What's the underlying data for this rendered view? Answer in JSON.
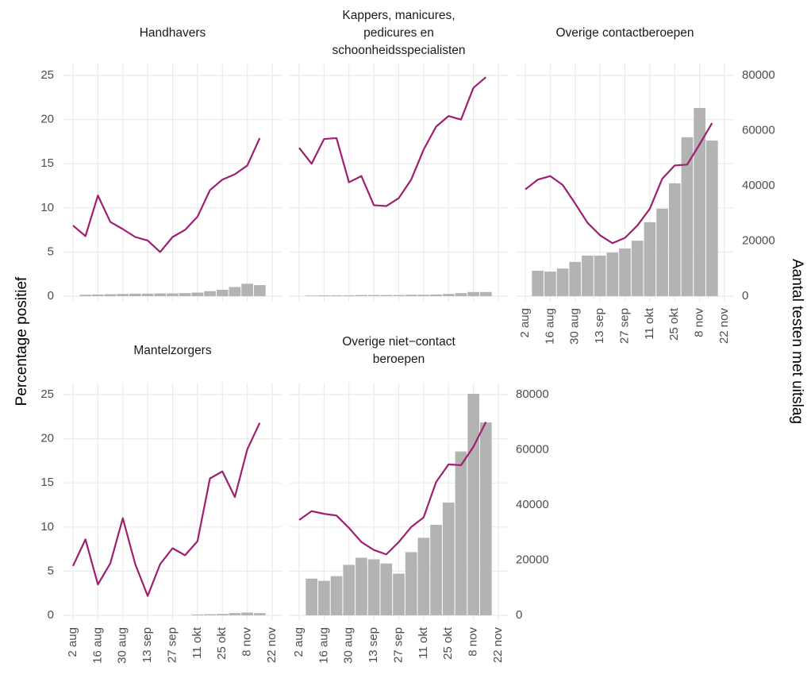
{
  "ylabel": "Percentage positief",
  "y2label": "Aantal testen met uitslag",
  "ylim": [
    0,
    25
  ],
  "yticks": [
    0,
    5,
    10,
    15,
    20,
    25
  ],
  "y2lim": [
    0,
    80000
  ],
  "y2ticks": [
    0,
    20000,
    40000,
    60000,
    80000
  ],
  "xlim": [
    "2 aug",
    "22 nov"
  ],
  "xticks": [
    "2 aug",
    "16 aug",
    "30 aug",
    "13 sep",
    "27 sep",
    "11 okt",
    "25 okt",
    "8 nov",
    "22 nov"
  ],
  "chart_data": [
    {
      "type": "combo",
      "title": [
        "Handhavers"
      ],
      "x": [
        "2 aug",
        "9 aug",
        "16 aug",
        "23 aug",
        "30 aug",
        "6 sep",
        "13 sep",
        "20 sep",
        "27 sep",
        "4 okt",
        "11 okt",
        "18 okt",
        "25 okt",
        "1 nov",
        "8 nov",
        "15 nov"
      ],
      "series": [
        {
          "type": "bar",
          "axis": "y2",
          "color": "#b3b3b3",
          "values": [
            null,
            500,
            600,
            700,
            800,
            900,
            900,
            1000,
            1000,
            1100,
            1300,
            1800,
            2300,
            3300,
            4500,
            4000
          ]
        },
        {
          "type": "line",
          "color": "#9e1f70",
          "values": [
            8.0,
            6.8,
            11.4,
            8.4,
            7.6,
            6.7,
            6.3,
            5.0,
            6.7,
            7.5,
            9.0,
            12.0,
            13.2,
            13.8,
            14.8,
            17.9
          ]
        }
      ]
    },
    {
      "type": "combo",
      "title": [
        "Kappers, manicures,",
        "pedicures en",
        "schoonheidsspecialisten"
      ],
      "x": [
        "2 aug",
        "9 aug",
        "16 aug",
        "23 aug",
        "30 aug",
        "6 sep",
        "13 sep",
        "20 sep",
        "27 sep",
        "4 okt",
        "11 okt",
        "18 okt",
        "25 okt",
        "1 nov",
        "8 nov",
        "15 nov"
      ],
      "series": [
        {
          "type": "bar",
          "axis": "y2",
          "color": "#b3b3b3",
          "values": [
            null,
            200,
            300,
            300,
            300,
            400,
            400,
            400,
            400,
            500,
            500,
            600,
            800,
            1100,
            1500,
            1500
          ]
        },
        {
          "type": "line",
          "color": "#9e1f70",
          "values": [
            16.8,
            15.0,
            17.8,
            17.9,
            12.9,
            13.6,
            10.3,
            10.2,
            11.1,
            13.2,
            16.6,
            19.2,
            20.4,
            20.0,
            23.6,
            24.8
          ]
        }
      ]
    },
    {
      "type": "combo",
      "title": [
        "Overige contactberoepen"
      ],
      "x": [
        "2 aug",
        "9 aug",
        "16 aug",
        "23 aug",
        "30 aug",
        "6 sep",
        "13 sep",
        "20 sep",
        "27 sep",
        "4 okt",
        "11 okt",
        "18 okt",
        "25 okt",
        "1 nov",
        "8 nov",
        "15 nov"
      ],
      "series": [
        {
          "type": "bar",
          "axis": "y2",
          "color": "#b3b3b3",
          "values": [
            null,
            9200,
            8900,
            10000,
            12400,
            14700,
            14700,
            15800,
            17300,
            20100,
            26800,
            31700,
            40900,
            57600,
            68200,
            56400
          ]
        },
        {
          "type": "line",
          "color": "#9e1f70",
          "values": [
            12.1,
            13.2,
            13.6,
            12.6,
            10.5,
            8.3,
            6.9,
            6.0,
            6.6,
            8.0,
            9.9,
            13.3,
            14.8,
            14.9,
            17.2,
            19.6
          ]
        }
      ]
    },
    {
      "type": "combo",
      "title": [
        "Mantelzorgers"
      ],
      "x": [
        "2 aug",
        "9 aug",
        "16 aug",
        "23 aug",
        "30 aug",
        "6 sep",
        "13 sep",
        "20 sep",
        "27 sep",
        "4 okt",
        "11 okt",
        "18 okt",
        "25 okt",
        "1 nov",
        "8 nov",
        "15 nov"
      ],
      "series": [
        {
          "type": "bar",
          "axis": "y2",
          "color": "#b3b3b3",
          "values": [
            null,
            null,
            null,
            null,
            null,
            null,
            null,
            null,
            null,
            null,
            300,
            400,
            500,
            800,
            1000,
            800
          ]
        },
        {
          "type": "line",
          "color": "#9e1f70",
          "values": [
            5.6,
            8.6,
            3.5,
            5.9,
            11.0,
            5.8,
            2.2,
            5.8,
            7.6,
            6.8,
            8.4,
            15.5,
            16.3,
            13.4,
            18.8,
            21.8
          ]
        }
      ]
    },
    {
      "type": "combo",
      "title": [
        "Overige niet−contact",
        "beroepen"
      ],
      "x": [
        "2 aug",
        "9 aug",
        "16 aug",
        "23 aug",
        "30 aug",
        "6 sep",
        "13 sep",
        "20 sep",
        "27 sep",
        "4 okt",
        "11 okt",
        "18 okt",
        "25 okt",
        "1 nov",
        "8 nov",
        "15 nov"
      ],
      "series": [
        {
          "type": "bar",
          "axis": "y2",
          "color": "#b3b3b3",
          "values": [
            null,
            13300,
            12500,
            14200,
            18300,
            20900,
            20300,
            18800,
            15100,
            22900,
            28100,
            32800,
            40900,
            59400,
            80300,
            69900
          ]
        },
        {
          "type": "line",
          "color": "#9e1f70",
          "values": [
            10.8,
            11.8,
            11.5,
            11.3,
            9.9,
            8.3,
            7.4,
            6.9,
            8.3,
            10.0,
            11.1,
            15.1,
            17.1,
            17.0,
            19.1,
            21.9
          ]
        }
      ]
    }
  ]
}
